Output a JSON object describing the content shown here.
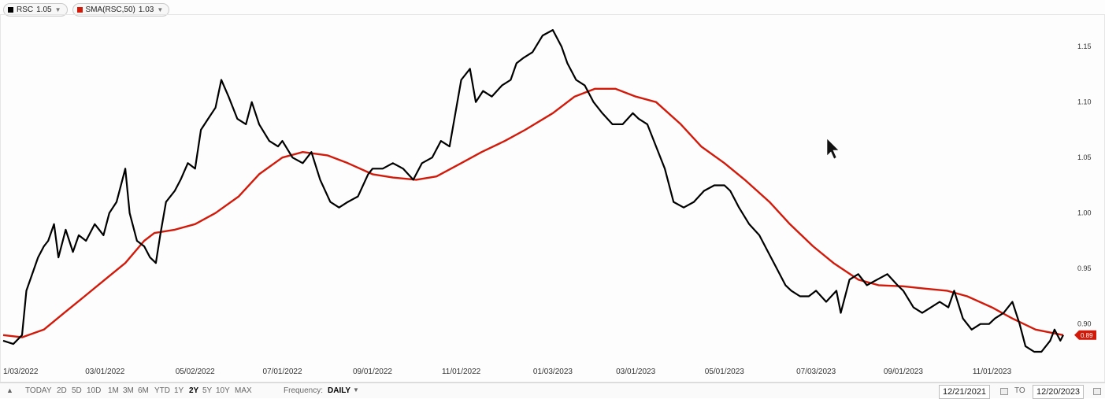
{
  "legend": [
    {
      "label": "RSC",
      "value": "1.05",
      "color": "#000000"
    },
    {
      "label": "SMA(RSC,50)",
      "value": "1.03",
      "color": "#d21a0a"
    }
  ],
  "chart_data": {
    "type": "line",
    "x_ticks": [
      "1/03/2022",
      "03/01/2022",
      "05/02/2022",
      "07/01/2022",
      "09/01/2022",
      "11/01/2022",
      "01/03/2023",
      "03/01/2023",
      "05/01/2023",
      "07/03/2023",
      "09/01/2023",
      "11/01/2023"
    ],
    "y_ticks": [
      "0.90",
      "0.95",
      "1.00",
      "1.05",
      "1.10",
      "1.15"
    ],
    "ylim": [
      0.87,
      1.175
    ],
    "last_value_label": "0.89",
    "series": [
      {
        "name": "RSC",
        "color": "#000000",
        "points": [
          [
            "2021-12-21",
            0.885
          ],
          [
            "2021-12-28",
            0.882
          ],
          [
            "2022-01-03",
            0.89
          ],
          [
            "2022-01-06",
            0.93
          ],
          [
            "2022-01-10",
            0.945
          ],
          [
            "2022-01-14",
            0.96
          ],
          [
            "2022-01-18",
            0.97
          ],
          [
            "2022-01-21",
            0.975
          ],
          [
            "2022-01-25",
            0.99
          ],
          [
            "2022-01-28",
            0.96
          ],
          [
            "2022-02-02",
            0.985
          ],
          [
            "2022-02-07",
            0.965
          ],
          [
            "2022-02-11",
            0.98
          ],
          [
            "2022-02-16",
            0.975
          ],
          [
            "2022-02-22",
            0.99
          ],
          [
            "2022-02-28",
            0.98
          ],
          [
            "2022-03-04",
            1.0
          ],
          [
            "2022-03-09",
            1.01
          ],
          [
            "2022-03-15",
            1.04
          ],
          [
            "2022-03-18",
            1.0
          ],
          [
            "2022-03-23",
            0.975
          ],
          [
            "2022-03-28",
            0.97
          ],
          [
            "2022-04-01",
            0.96
          ],
          [
            "2022-04-05",
            0.955
          ],
          [
            "2022-04-08",
            0.98
          ],
          [
            "2022-04-12",
            1.01
          ],
          [
            "2022-04-18",
            1.02
          ],
          [
            "2022-04-22",
            1.03
          ],
          [
            "2022-04-27",
            1.045
          ],
          [
            "2022-05-02",
            1.04
          ],
          [
            "2022-05-06",
            1.075
          ],
          [
            "2022-05-11",
            1.085
          ],
          [
            "2022-05-16",
            1.095
          ],
          [
            "2022-05-20",
            1.12
          ],
          [
            "2022-05-25",
            1.105
          ],
          [
            "2022-05-31",
            1.085
          ],
          [
            "2022-06-06",
            1.08
          ],
          [
            "2022-06-10",
            1.1
          ],
          [
            "2022-06-15",
            1.08
          ],
          [
            "2022-06-22",
            1.065
          ],
          [
            "2022-06-28",
            1.06
          ],
          [
            "2022-07-01",
            1.065
          ],
          [
            "2022-07-08",
            1.05
          ],
          [
            "2022-07-15",
            1.045
          ],
          [
            "2022-07-21",
            1.055
          ],
          [
            "2022-07-27",
            1.03
          ],
          [
            "2022-08-03",
            1.01
          ],
          [
            "2022-08-09",
            1.005
          ],
          [
            "2022-08-15",
            1.01
          ],
          [
            "2022-08-22",
            1.015
          ],
          [
            "2022-08-29",
            1.035
          ],
          [
            "2022-09-01",
            1.04
          ],
          [
            "2022-09-08",
            1.04
          ],
          [
            "2022-09-15",
            1.045
          ],
          [
            "2022-09-22",
            1.04
          ],
          [
            "2022-09-29",
            1.03
          ],
          [
            "2022-10-05",
            1.045
          ],
          [
            "2022-10-12",
            1.05
          ],
          [
            "2022-10-18",
            1.065
          ],
          [
            "2022-10-24",
            1.06
          ],
          [
            "2022-10-28",
            1.09
          ],
          [
            "2022-11-01",
            1.12
          ],
          [
            "2022-11-07",
            1.13
          ],
          [
            "2022-11-11",
            1.1
          ],
          [
            "2022-11-16",
            1.11
          ],
          [
            "2022-11-22",
            1.105
          ],
          [
            "2022-11-29",
            1.115
          ],
          [
            "2022-12-05",
            1.12
          ],
          [
            "2022-12-09",
            1.135
          ],
          [
            "2022-12-14",
            1.14
          ],
          [
            "2022-12-20",
            1.145
          ],
          [
            "2022-12-27",
            1.16
          ],
          [
            "2023-01-03",
            1.165
          ],
          [
            "2023-01-09",
            1.15
          ],
          [
            "2023-01-13",
            1.135
          ],
          [
            "2023-01-19",
            1.12
          ],
          [
            "2023-01-25",
            1.115
          ],
          [
            "2023-01-31",
            1.1
          ],
          [
            "2023-02-06",
            1.09
          ],
          [
            "2023-02-13",
            1.08
          ],
          [
            "2023-02-20",
            1.08
          ],
          [
            "2023-02-27",
            1.09
          ],
          [
            "2023-03-03",
            1.085
          ],
          [
            "2023-03-09",
            1.08
          ],
          [
            "2023-03-15",
            1.06
          ],
          [
            "2023-03-21",
            1.04
          ],
          [
            "2023-03-27",
            1.01
          ],
          [
            "2023-04-03",
            1.005
          ],
          [
            "2023-04-10",
            1.01
          ],
          [
            "2023-04-17",
            1.02
          ],
          [
            "2023-04-24",
            1.025
          ],
          [
            "2023-05-01",
            1.025
          ],
          [
            "2023-05-05",
            1.02
          ],
          [
            "2023-05-11",
            1.005
          ],
          [
            "2023-05-18",
            0.99
          ],
          [
            "2023-05-25",
            0.98
          ],
          [
            "2023-05-31",
            0.965
          ],
          [
            "2023-06-06",
            0.95
          ],
          [
            "2023-06-12",
            0.935
          ],
          [
            "2023-06-16",
            0.93
          ],
          [
            "2023-06-22",
            0.925
          ],
          [
            "2023-06-28",
            0.925
          ],
          [
            "2023-07-03",
            0.93
          ],
          [
            "2023-07-10",
            0.92
          ],
          [
            "2023-07-17",
            0.93
          ],
          [
            "2023-07-20",
            0.91
          ],
          [
            "2023-07-26",
            0.94
          ],
          [
            "2023-08-01",
            0.945
          ],
          [
            "2023-08-07",
            0.935
          ],
          [
            "2023-08-14",
            0.94
          ],
          [
            "2023-08-21",
            0.945
          ],
          [
            "2023-08-28",
            0.935
          ],
          [
            "2023-09-01",
            0.93
          ],
          [
            "2023-09-08",
            0.915
          ],
          [
            "2023-09-14",
            0.91
          ],
          [
            "2023-09-20",
            0.915
          ],
          [
            "2023-09-26",
            0.92
          ],
          [
            "2023-10-02",
            0.915
          ],
          [
            "2023-10-06",
            0.93
          ],
          [
            "2023-10-12",
            0.905
          ],
          [
            "2023-10-18",
            0.895
          ],
          [
            "2023-10-24",
            0.9
          ],
          [
            "2023-10-30",
            0.9
          ],
          [
            "2023-11-03",
            0.905
          ],
          [
            "2023-11-09",
            0.91
          ],
          [
            "2023-11-15",
            0.92
          ],
          [
            "2023-11-20",
            0.9
          ],
          [
            "2023-11-24",
            0.88
          ],
          [
            "2023-11-30",
            0.875
          ],
          [
            "2023-12-05",
            0.875
          ],
          [
            "2023-12-11",
            0.885
          ],
          [
            "2023-12-14",
            0.895
          ],
          [
            "2023-12-18",
            0.885
          ],
          [
            "2023-12-20",
            0.89
          ]
        ]
      },
      {
        "name": "SMA(RSC,50)",
        "color": "#d21a0a",
        "points": [
          [
            "2021-12-21",
            0.89
          ],
          [
            "2022-01-03",
            0.888
          ],
          [
            "2022-01-18",
            0.895
          ],
          [
            "2022-02-01",
            0.91
          ],
          [
            "2022-02-15",
            0.925
          ],
          [
            "2022-03-01",
            0.94
          ],
          [
            "2022-03-15",
            0.955
          ],
          [
            "2022-03-28",
            0.975
          ],
          [
            "2022-04-04",
            0.982
          ],
          [
            "2022-04-18",
            0.985
          ],
          [
            "2022-05-02",
            0.99
          ],
          [
            "2022-05-16",
            1.0
          ],
          [
            "2022-06-01",
            1.015
          ],
          [
            "2022-06-15",
            1.035
          ],
          [
            "2022-07-01",
            1.05
          ],
          [
            "2022-07-15",
            1.055
          ],
          [
            "2022-08-01",
            1.052
          ],
          [
            "2022-08-15",
            1.045
          ],
          [
            "2022-09-01",
            1.035
          ],
          [
            "2022-09-15",
            1.032
          ],
          [
            "2022-10-01",
            1.03
          ],
          [
            "2022-10-15",
            1.033
          ],
          [
            "2022-11-01",
            1.045
          ],
          [
            "2022-11-15",
            1.055
          ],
          [
            "2022-12-01",
            1.065
          ],
          [
            "2022-12-15",
            1.075
          ],
          [
            "2023-01-03",
            1.09
          ],
          [
            "2023-01-18",
            1.105
          ],
          [
            "2023-02-01",
            1.112
          ],
          [
            "2023-02-15",
            1.112
          ],
          [
            "2023-03-01",
            1.105
          ],
          [
            "2023-03-15",
            1.1
          ],
          [
            "2023-04-01",
            1.08
          ],
          [
            "2023-04-15",
            1.06
          ],
          [
            "2023-05-01",
            1.045
          ],
          [
            "2023-05-15",
            1.03
          ],
          [
            "2023-06-01",
            1.01
          ],
          [
            "2023-06-15",
            0.99
          ],
          [
            "2023-07-01",
            0.97
          ],
          [
            "2023-07-15",
            0.955
          ],
          [
            "2023-08-01",
            0.94
          ],
          [
            "2023-08-15",
            0.935
          ],
          [
            "2023-09-01",
            0.934
          ],
          [
            "2023-09-15",
            0.932
          ],
          [
            "2023-10-01",
            0.93
          ],
          [
            "2023-10-15",
            0.925
          ],
          [
            "2023-11-01",
            0.915
          ],
          [
            "2023-11-15",
            0.905
          ],
          [
            "2023-12-01",
            0.895
          ],
          [
            "2023-12-20",
            0.89
          ]
        ]
      }
    ]
  },
  "toolbar": {
    "scroll_left": "▲",
    "ranges": [
      "TODAY",
      "2D",
      "5D",
      "10D",
      "1M",
      "3M",
      "6M",
      "YTD",
      "1Y",
      "2Y",
      "5Y",
      "10Y",
      "MAX"
    ],
    "active_range": "2Y",
    "frequency_label": "Frequency:",
    "frequency_value": "DAILY",
    "from_date": "12/21/2021",
    "to_label": "TO",
    "to_date": "12/20/2023"
  }
}
